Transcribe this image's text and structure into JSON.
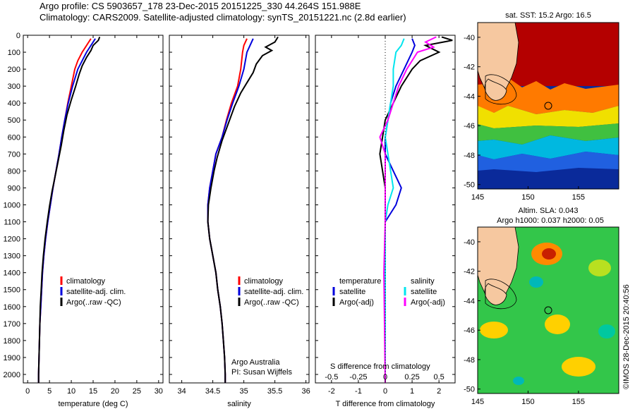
{
  "header": {
    "line1": "Argo profile: CS 5903657_178 23-Dec-2015 20151225_330 44.264S 151.988E",
    "line2": "Climatology: CARS2009. Satellite-adjusted climatology: synTS_20151221.nc (2.8d earlier)"
  },
  "depth_ticks": [
    "0",
    "100",
    "200",
    "300",
    "400",
    "500",
    "600",
    "700",
    "800",
    "900",
    "1000",
    "1100",
    "1200",
    "1300",
    "1400",
    "1500",
    "1600",
    "1700",
    "1800",
    "1900",
    "2000"
  ],
  "panels": {
    "temperature": {
      "xlabel": "temperature (deg C)",
      "xticks": [
        "0",
        "5",
        "10",
        "15",
        "20",
        "25",
        "30"
      ],
      "legend": [
        "climatology",
        "satellite-adj. clim.",
        "Argo(..raw -QC)"
      ]
    },
    "salinity": {
      "xlabel": "salinity",
      "xticks": [
        "34",
        "34.5",
        "35",
        "35.5",
        "36"
      ],
      "legend": [
        "climatology",
        "satellite-adj. clim.",
        "Argo(..raw -QC)"
      ],
      "note1": "Argo Australia",
      "note2": "PI: Susan Wijffels"
    },
    "difference": {
      "xlabel_bottom": "T difference from climatology",
      "xlabel_top": "S difference from climatology",
      "t_ticks": [
        "-2",
        "-1",
        "0",
        "1",
        "2"
      ],
      "s_ticks": [
        "-0.5",
        "-0.25",
        "0",
        "0.25",
        "0.5"
      ],
      "legend_t_title": "temperature",
      "legend_s_title": "salinity",
      "legend_t": [
        "satellite",
        "Argo(-adj)"
      ],
      "legend_s": [
        "satellite",
        "Argo(-adj)"
      ]
    },
    "sst_map": {
      "title": "sat. SST: 15.2 Argo: 16.5",
      "lat_ticks": [
        "-40",
        "-42",
        "-44",
        "-46",
        "-48",
        "-50"
      ],
      "lon_ticks": [
        "145",
        "150",
        "155"
      ]
    },
    "sla_map": {
      "title1": "Altim. SLA: 0.043",
      "title2": "Argo h1000: 0.037 h2000: 0.05",
      "lat_ticks": [
        "-40",
        "-42",
        "-44",
        "-46",
        "-48",
        "-50"
      ],
      "lon_ticks": [
        "145",
        "150",
        "155"
      ]
    }
  },
  "footer_vertical": "©IMOS 28-Dec-2015 20:40:56",
  "colors": {
    "climatology": "#ff0000",
    "satellite": "#0000dd",
    "argo": "#000000",
    "s_satellite": "#00e5ee",
    "s_argo": "#ff00ff"
  },
  "chart_data": [
    {
      "type": "line",
      "xlabel": "temperature (deg C)",
      "ylabel": "",
      "xlim": [
        -1,
        31
      ],
      "ylim": [
        2050,
        0
      ],
      "series": [
        {
          "name": "climatology",
          "points": [
            [
              14.5,
              20
            ],
            [
              13.5,
              60
            ],
            [
              12.5,
              100
            ],
            [
              11.5,
              150
            ],
            [
              10.8,
              200
            ],
            [
              10.0,
              300
            ],
            [
              9.2,
              400
            ],
            [
              8.5,
              500
            ],
            [
              7.8,
              600
            ],
            [
              7.2,
              700
            ],
            [
              6.5,
              800
            ],
            [
              5.8,
              900
            ],
            [
              5.2,
              1000
            ],
            [
              4.6,
              1100
            ],
            [
              4.1,
              1200
            ],
            [
              3.7,
              1300
            ],
            [
              3.4,
              1400
            ],
            [
              3.2,
              1500
            ],
            [
              3.0,
              1600
            ],
            [
              2.8,
              1700
            ],
            [
              2.7,
              1800
            ],
            [
              2.6,
              1900
            ],
            [
              2.5,
              2000
            ],
            [
              2.5,
              2050
            ]
          ]
        },
        {
          "name": "satellite-adj. clim.",
          "points": [
            [
              15.5,
              20
            ],
            [
              14.5,
              60
            ],
            [
              13.5,
              100
            ],
            [
              12.5,
              150
            ],
            [
              11.5,
              200
            ],
            [
              10.3,
              300
            ],
            [
              9.3,
              400
            ],
            [
              8.5,
              500
            ],
            [
              7.8,
              600
            ],
            [
              7.2,
              700
            ],
            [
              6.5,
              800
            ],
            [
              5.8,
              900
            ],
            [
              5.2,
              1000
            ],
            [
              4.6,
              1100
            ],
            [
              4.1,
              1200
            ],
            [
              3.7,
              1300
            ],
            [
              3.4,
              1400
            ],
            [
              3.2,
              1500
            ],
            [
              3.0,
              1600
            ],
            [
              2.8,
              1700
            ],
            [
              2.7,
              1800
            ],
            [
              2.6,
              1900
            ],
            [
              2.5,
              2000
            ],
            [
              2.5,
              2050
            ]
          ]
        },
        {
          "name": "Argo(..raw -QC)",
          "points": [
            [
              16.5,
              10
            ],
            [
              16.2,
              30
            ],
            [
              15.0,
              60
            ],
            [
              14.5,
              90
            ],
            [
              13.5,
              130
            ],
            [
              12.5,
              180
            ],
            [
              11.8,
              230
            ],
            [
              11.0,
              300
            ],
            [
              10.0,
              380
            ],
            [
              9.0,
              470
            ],
            [
              8.3,
              560
            ],
            [
              7.7,
              650
            ],
            [
              7.0,
              740
            ],
            [
              6.3,
              830
            ],
            [
              5.6,
              920
            ],
            [
              5.0,
              1010
            ],
            [
              4.5,
              1100
            ],
            [
              4.0,
              1200
            ],
            [
              3.6,
              1300
            ],
            [
              3.3,
              1400
            ],
            [
              3.1,
              1500
            ],
            [
              2.9,
              1600
            ],
            [
              2.8,
              1700
            ],
            [
              2.7,
              1800
            ],
            [
              2.6,
              1900
            ],
            [
              2.5,
              2000
            ],
            [
              2.5,
              2050
            ]
          ]
        }
      ]
    },
    {
      "type": "line",
      "xlabel": "salinity",
      "ylabel": "",
      "xlim": [
        33.8,
        36.05
      ],
      "ylim": [
        2050,
        0
      ],
      "series": [
        {
          "name": "climatology",
          "points": [
            [
              35.05,
              20
            ],
            [
              35.0,
              60
            ],
            [
              34.98,
              100
            ],
            [
              34.95,
              200
            ],
            [
              34.9,
              300
            ],
            [
              34.8,
              400
            ],
            [
              34.72,
              500
            ],
            [
              34.65,
              600
            ],
            [
              34.55,
              700
            ],
            [
              34.5,
              800
            ],
            [
              34.45,
              900
            ],
            [
              34.42,
              1000
            ],
            [
              34.42,
              1100
            ],
            [
              34.45,
              1200
            ],
            [
              34.5,
              1300
            ],
            [
              34.55,
              1400
            ],
            [
              34.58,
              1500
            ],
            [
              34.62,
              1600
            ],
            [
              34.65,
              1700
            ],
            [
              34.67,
              1800
            ],
            [
              34.69,
              1900
            ],
            [
              34.7,
              2000
            ],
            [
              34.7,
              2050
            ]
          ]
        },
        {
          "name": "satellite-adj. clim.",
          "points": [
            [
              35.15,
              20
            ],
            [
              35.1,
              60
            ],
            [
              35.05,
              100
            ],
            [
              35.0,
              200
            ],
            [
              34.92,
              300
            ],
            [
              34.82,
              400
            ],
            [
              34.73,
              500
            ],
            [
              34.65,
              600
            ],
            [
              34.55,
              700
            ],
            [
              34.5,
              800
            ],
            [
              34.45,
              900
            ],
            [
              34.42,
              1000
            ],
            [
              34.42,
              1100
            ],
            [
              34.45,
              1200
            ],
            [
              34.5,
              1300
            ],
            [
              34.55,
              1400
            ],
            [
              34.58,
              1500
            ],
            [
              34.62,
              1600
            ],
            [
              34.65,
              1700
            ],
            [
              34.67,
              1800
            ],
            [
              34.69,
              1900
            ],
            [
              34.7,
              2000
            ],
            [
              34.7,
              2050
            ]
          ]
        },
        {
          "name": "Argo(..raw -QC)",
          "points": [
            [
              35.55,
              10
            ],
            [
              35.5,
              40
            ],
            [
              35.35,
              70
            ],
            [
              35.45,
              90
            ],
            [
              35.3,
              120
            ],
            [
              35.2,
              170
            ],
            [
              35.15,
              220
            ],
            [
              35.05,
              280
            ],
            [
              34.95,
              340
            ],
            [
              34.85,
              420
            ],
            [
              34.75,
              520
            ],
            [
              34.65,
              620
            ],
            [
              34.57,
              720
            ],
            [
              34.52,
              800
            ],
            [
              34.47,
              900
            ],
            [
              34.43,
              1000
            ],
            [
              34.42,
              1100
            ],
            [
              34.45,
              1200
            ],
            [
              34.5,
              1300
            ],
            [
              34.55,
              1400
            ],
            [
              34.58,
              1500
            ],
            [
              34.62,
              1600
            ],
            [
              34.65,
              1700
            ],
            [
              34.67,
              1800
            ],
            [
              34.69,
              1900
            ],
            [
              34.7,
              2000
            ],
            [
              34.7,
              2050
            ]
          ]
        }
      ]
    },
    {
      "type": "line",
      "xlabel": "T difference from climatology",
      "ylabel": "",
      "xlim": [
        -2.6,
        2.6
      ],
      "ylim": [
        2050,
        0
      ],
      "series": [
        {
          "name": "satellite",
          "points": [
            [
              1.0,
              20
            ],
            [
              1.1,
              60
            ],
            [
              1.0,
              100
            ],
            [
              0.7,
              200
            ],
            [
              0.4,
              300
            ],
            [
              0.2,
              400
            ],
            [
              0.1,
              500
            ],
            [
              0.0,
              600
            ],
            [
              0.0,
              700
            ],
            [
              0.3,
              800
            ],
            [
              0.6,
              900
            ],
            [
              0.4,
              1000
            ],
            [
              0.0,
              1100
            ],
            [
              0.0,
              1200
            ],
            [
              0.0,
              2050
            ]
          ]
        },
        {
          "name": "Argo(-adj)",
          "points": [
            [
              2.1,
              10
            ],
            [
              2.5,
              30
            ],
            [
              1.5,
              60
            ],
            [
              2.0,
              100
            ],
            [
              1.3,
              150
            ],
            [
              1.0,
              200
            ],
            [
              0.6,
              300
            ],
            [
              0.3,
              400
            ],
            [
              0.0,
              500
            ],
            [
              -0.1,
              600
            ],
            [
              -0.2,
              700
            ],
            [
              -0.1,
              800
            ],
            [
              0.0,
              900
            ],
            [
              0.0,
              1000
            ],
            [
              0.0,
              1200
            ],
            [
              0.0,
              1500
            ],
            [
              0.0,
              2050
            ]
          ]
        },
        {
          "name": "salinity satellite",
          "points": [
            [
              0.7,
              20
            ],
            [
              0.6,
              60
            ],
            [
              0.4,
              100
            ],
            [
              0.3,
              200
            ],
            [
              0.3,
              300
            ],
            [
              0.2,
              400
            ],
            [
              0.1,
              500
            ],
            [
              0.0,
              600
            ],
            [
              0.1,
              700
            ],
            [
              0.2,
              800
            ],
            [
              0.3,
              900
            ],
            [
              0.1,
              1000
            ],
            [
              0.0,
              1100
            ],
            [
              0.0,
              2050
            ]
          ]
        },
        {
          "name": "salinity Argo(-adj)",
          "points": [
            [
              1.9,
              10
            ],
            [
              1.5,
              40
            ],
            [
              1.8,
              70
            ],
            [
              1.2,
              100
            ],
            [
              0.8,
              200
            ],
            [
              0.5,
              300
            ],
            [
              0.3,
              400
            ],
            [
              0.1,
              500
            ],
            [
              -0.2,
              600
            ],
            [
              0.0,
              700
            ],
            [
              0.0,
              800
            ],
            [
              0.0,
              1100
            ],
            [
              -0.05,
              1400
            ],
            [
              0.0,
              2050
            ]
          ]
        }
      ]
    }
  ]
}
